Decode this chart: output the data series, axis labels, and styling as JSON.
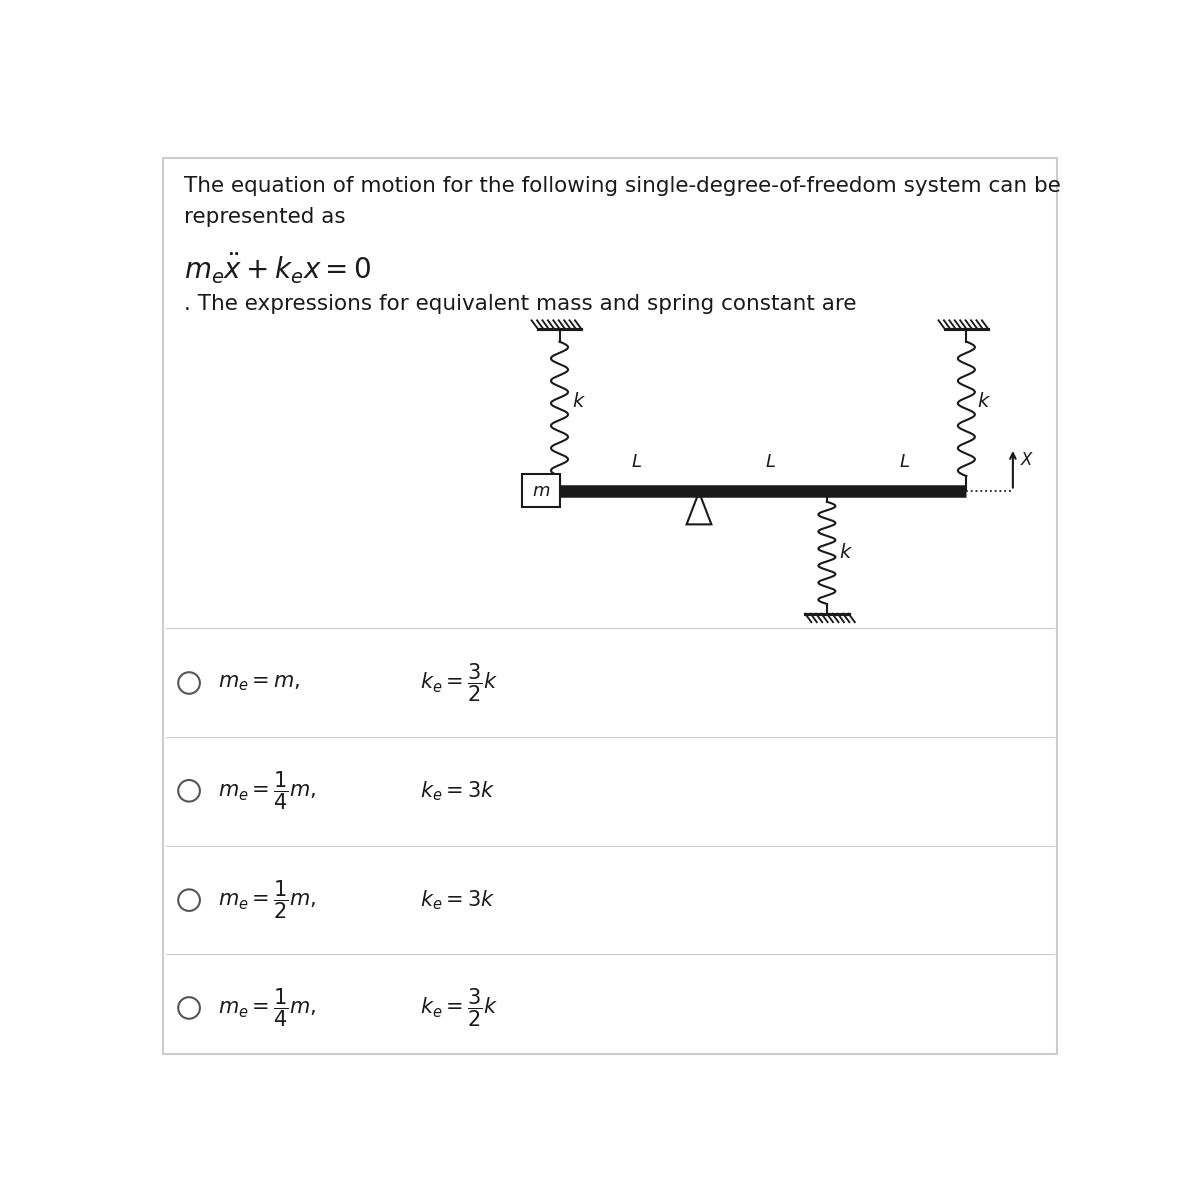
{
  "bg_color": "#ffffff",
  "panel_color": "#ffffff",
  "text_color": "#1a1a1a",
  "title_line1": "The equation of motion for the following single-degree-of-freedom system can be",
  "title_line2": "represented as",
  "subtitle": ". The expressions for equivalent mass and spring constant are",
  "options": [
    {
      "me": "$m_e = m,$",
      "ke": "$k_e = \\dfrac{3}{2}k$"
    },
    {
      "me": "$m_e = \\dfrac{1}{4}m,$",
      "ke": "$k_e = 3k$"
    },
    {
      "me": "$m_e = \\dfrac{1}{2}m,$",
      "ke": "$k_e = 3k$"
    },
    {
      "me": "$m_e = \\dfrac{1}{4}m,$",
      "ke": "$k_e = \\dfrac{3}{2}k$"
    }
  ],
  "border_color": "#cccccc",
  "sep_color": "#cccccc"
}
